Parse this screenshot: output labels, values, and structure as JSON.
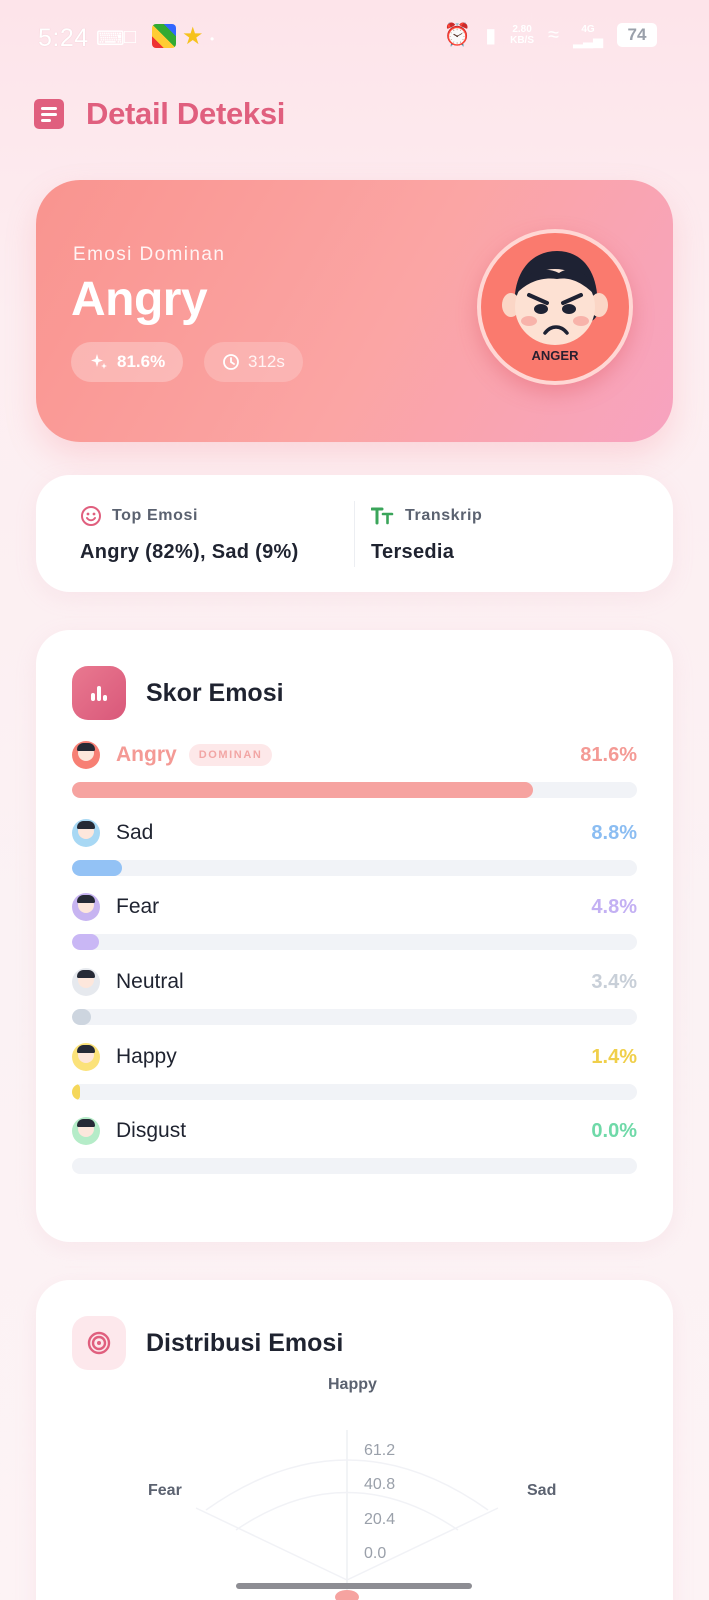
{
  "status_bar": {
    "time": "5:24",
    "net_speed_top": "2.80",
    "net_speed_bottom": "KB/S",
    "network": "4G",
    "battery": "74"
  },
  "header": {
    "title": "Detail Deteksi",
    "menu_icon": "list-icon"
  },
  "hero": {
    "label": "Emosi Dominan",
    "emotion": "Angry",
    "confidence": "81.6%",
    "duration": "312s",
    "avatar_caption": "ANGER",
    "colors": {
      "start": "#f9948f",
      "end": "#f7a3c0"
    }
  },
  "info": {
    "top_label": "Top Emosi",
    "top_value": "Angry (82%), Sad (9%)",
    "transcript_label": "Transkrip",
    "transcript_value": "Tersedia"
  },
  "scores": {
    "title": "Skor Emosi",
    "dominant_badge": "DOMINAN",
    "items": [
      {
        "name": "Angry",
        "pct": "81.6%",
        "value": 0.816,
        "color": "#f6a3a0",
        "text_color": "#f49a95",
        "face_bg": "#f77f74",
        "dominant": true
      },
      {
        "name": "Sad",
        "pct": "8.8%",
        "value": 0.088,
        "color": "#93c2f5",
        "text_color": "#8bbdf2",
        "face_bg": "#a8d8f4",
        "dominant": false
      },
      {
        "name": "Fear",
        "pct": "4.8%",
        "value": 0.048,
        "color": "#c9b7f5",
        "text_color": "#c3b0f3",
        "face_bg": "#c7b4f1",
        "dominant": false
      },
      {
        "name": "Neutral",
        "pct": "3.4%",
        "value": 0.034,
        "color": "#cdd5df",
        "text_color": "#c8cfd8",
        "face_bg": "#e6e9ee",
        "dominant": false
      },
      {
        "name": "Happy",
        "pct": "1.4%",
        "value": 0.014,
        "color": "#f5d75a",
        "text_color": "#f0cf4a",
        "face_bg": "#fbe27a",
        "dominant": false
      },
      {
        "name": "Disgust",
        "pct": "0.0%",
        "value": 0.0,
        "color": "#7fe0b4",
        "text_color": "#6fd9a8",
        "face_bg": "#b5ecc8",
        "dominant": false
      }
    ]
  },
  "distribution": {
    "title": "Distribusi Emosi",
    "axis_labels": {
      "top": "Happy",
      "left": "Fear",
      "right": "Sad"
    },
    "ticks": [
      "61.2",
      "40.8",
      "20.4",
      "0.0"
    ]
  }
}
